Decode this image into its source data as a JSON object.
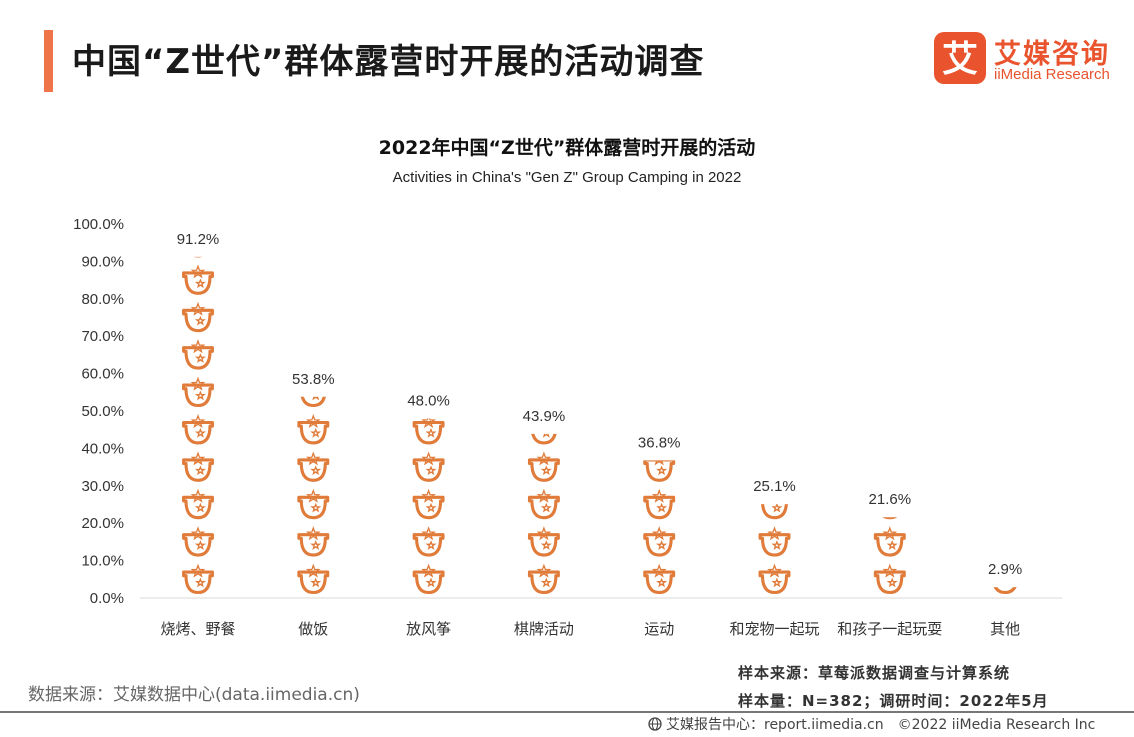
{
  "header": {
    "title": "中国“Z世代”群体露营时开展的活动调查",
    "brand_cn": "艾媒咨询",
    "brand_en": "iiMedia Research",
    "brand_mark_char": "艾"
  },
  "chart_data": {
    "type": "bar",
    "title": "2022年中国“Z世代”群体露营时开展的活动",
    "subtitle": "Activities in China's \"Gen Z\" Group Camping in 2022",
    "xlabel": "",
    "ylabel": "",
    "categories": [
      "烧烤、野餐",
      "做饭",
      "放风筝",
      "棋牌活动",
      "运动",
      "和宠物一起玩",
      "和孩子一起玩耍",
      "其他"
    ],
    "values": [
      91.2,
      53.8,
      48.0,
      43.9,
      36.8,
      25.1,
      21.6,
      2.9
    ],
    "value_labels": [
      "91.2%",
      "53.8%",
      "48.0%",
      "43.9%",
      "36.8%",
      "25.1%",
      "21.6%",
      "2.9%"
    ],
    "ylim": [
      0,
      100
    ],
    "yticks": [
      0,
      10,
      20,
      30,
      40,
      50,
      60,
      70,
      80,
      90,
      100
    ],
    "ytick_labels": [
      "0.0%",
      "10.0%",
      "20.0%",
      "30.0%",
      "40.0%",
      "50.0%",
      "60.0%",
      "70.0%",
      "80.0%",
      "90.0%",
      "100.0%"
    ],
    "grid": false,
    "bar_style": "stacked pictogram",
    "icon": "camping-pot-star-icon",
    "color": "#e07b39"
  },
  "source": {
    "left": "数据来源：艾媒数据中心(data.iimedia.cn)",
    "sample_source": "样本来源：草莓派数据调查与计算系统",
    "sample_size": "样本量：N=382；调研时间：2022年5月"
  },
  "footer": {
    "report_center": "艾媒报告中心：report.iimedia.cn",
    "copyright": "©2022  iiMedia Research  Inc"
  }
}
